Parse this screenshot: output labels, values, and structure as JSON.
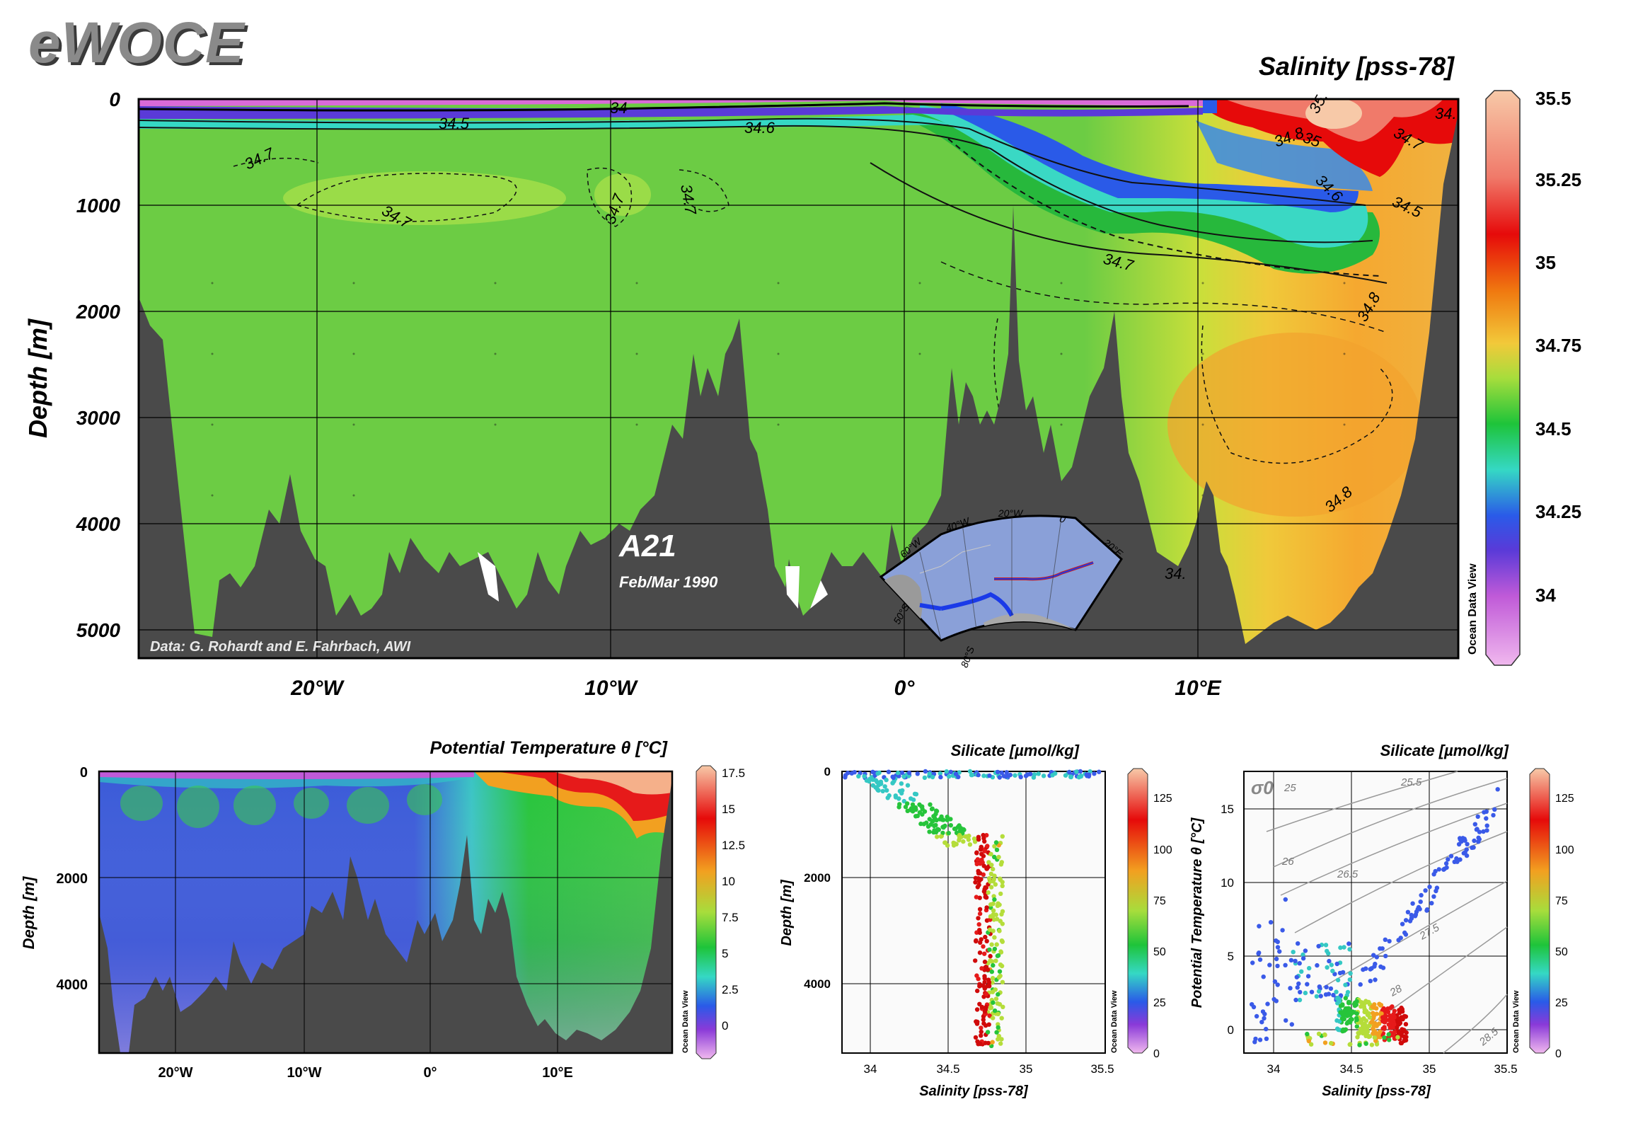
{
  "logo": "eWOCE",
  "main": {
    "title": "Salinity [pss-78]",
    "ylabel": "Depth [m]",
    "yticks": [
      "0",
      "1000",
      "2000",
      "3000",
      "4000",
      "5000"
    ],
    "xticks": [
      "20°W",
      "10°W",
      "0°",
      "10°E"
    ],
    "section_name": "A21",
    "section_date": "Feb/Mar 1990",
    "credit": "Data: G. Rohardt and E. Fahrbach, AWI",
    "colorbar_ticks": [
      "35.5",
      "35.25",
      "35",
      "34.75",
      "34.5",
      "34.25",
      "34"
    ],
    "contour_labels": [
      "34",
      "34.5",
      "34.6",
      "34.7",
      "34.7",
      "34.7",
      "34.7",
      "34.7",
      "34.8",
      "34.8",
      "34.8",
      "35",
      "35.",
      "34.5",
      "34.6",
      "34.7",
      "34.",
      "34."
    ],
    "watermark": "Ocean Data View"
  },
  "inset_map": {
    "labels": [
      "60°W",
      "40°W",
      "20°W",
      "0",
      "20°E",
      "50°S",
      "80°S"
    ]
  },
  "temp_panel": {
    "title": "Potential Temperature θ [°C]",
    "ylabel": "Depth [m]",
    "yticks": [
      "0",
      "2000",
      "4000"
    ],
    "xticks": [
      "20°W",
      "10°W",
      "0°",
      "10°E"
    ],
    "colorbar_ticks": [
      "17.5",
      "15",
      "12.5",
      "10",
      "7.5",
      "5",
      "2.5",
      "0"
    ],
    "watermark": "Ocean Data View"
  },
  "sal_depth_panel": {
    "title": "Silicate [µmol/kg]",
    "ylabel": "Depth [m]",
    "xlabel": "Salinity [pss-78]",
    "yticks": [
      "0",
      "2000",
      "4000"
    ],
    "xticks": [
      "34",
      "34.5",
      "35",
      "35.5"
    ],
    "colorbar_ticks": [
      "125",
      "100",
      "75",
      "50",
      "25",
      "0"
    ],
    "watermark": "Ocean Data View"
  },
  "ts_panel": {
    "title": "Silicate [µmol/kg]",
    "ylabel": "Potential Temperature θ [°C]",
    "xlabel": "Salinity [pss-78]",
    "yticks": [
      "15",
      "10",
      "5",
      "0"
    ],
    "xticks": [
      "34",
      "34.5",
      "35",
      "35.5"
    ],
    "sigma_symbol": "σ0",
    "isopycnal_labels": [
      "25",
      "25.5",
      "26",
      "26.5",
      "27.5",
      "28",
      "28.5"
    ],
    "colorbar_ticks": [
      "125",
      "100",
      "75",
      "50",
      "25",
      "0"
    ],
    "watermark": "Ocean Data View"
  },
  "chart_data": [
    {
      "type": "heatmap",
      "title": "Salinity [pss-78]",
      "ylabel": "Depth [m]",
      "x_ticks": [
        "20°W",
        "10°W",
        "0°",
        "10°E"
      ],
      "y_ticks": [
        0,
        1000,
        2000,
        3000,
        4000,
        5000
      ],
      "ylim": [
        5300,
        0
      ],
      "color_range": [
        33.8,
        35.5
      ],
      "contour_levels": [
        34,
        34.5,
        34.6,
        34.7,
        34.8,
        35
      ]
    },
    {
      "type": "heatmap",
      "title": "Potential Temperature θ [°C]",
      "ylabel": "Depth [m]",
      "x_ticks": [
        "20°W",
        "10°W",
        "0°",
        "10°E"
      ],
      "y_ticks": [
        0,
        2000,
        4000
      ],
      "color_range": [
        -1,
        17.5
      ]
    },
    {
      "type": "scatter",
      "title": "Silicate [µmol/kg]",
      "xlabel": "Salinity [pss-78]",
      "ylabel": "Depth [m]",
      "xlim": [
        33.8,
        35.5
      ],
      "ylim": [
        5300,
        0
      ],
      "color_range": [
        0,
        140
      ]
    },
    {
      "type": "scatter",
      "title": "Silicate [µmol/kg]",
      "xlabel": "Salinity [pss-78]",
      "ylabel": "Potential Temperature θ [°C]",
      "xlim": [
        33.8,
        35.5
      ],
      "ylim": [
        -1.5,
        17.5
      ],
      "color_range": [
        0,
        140
      ]
    }
  ]
}
